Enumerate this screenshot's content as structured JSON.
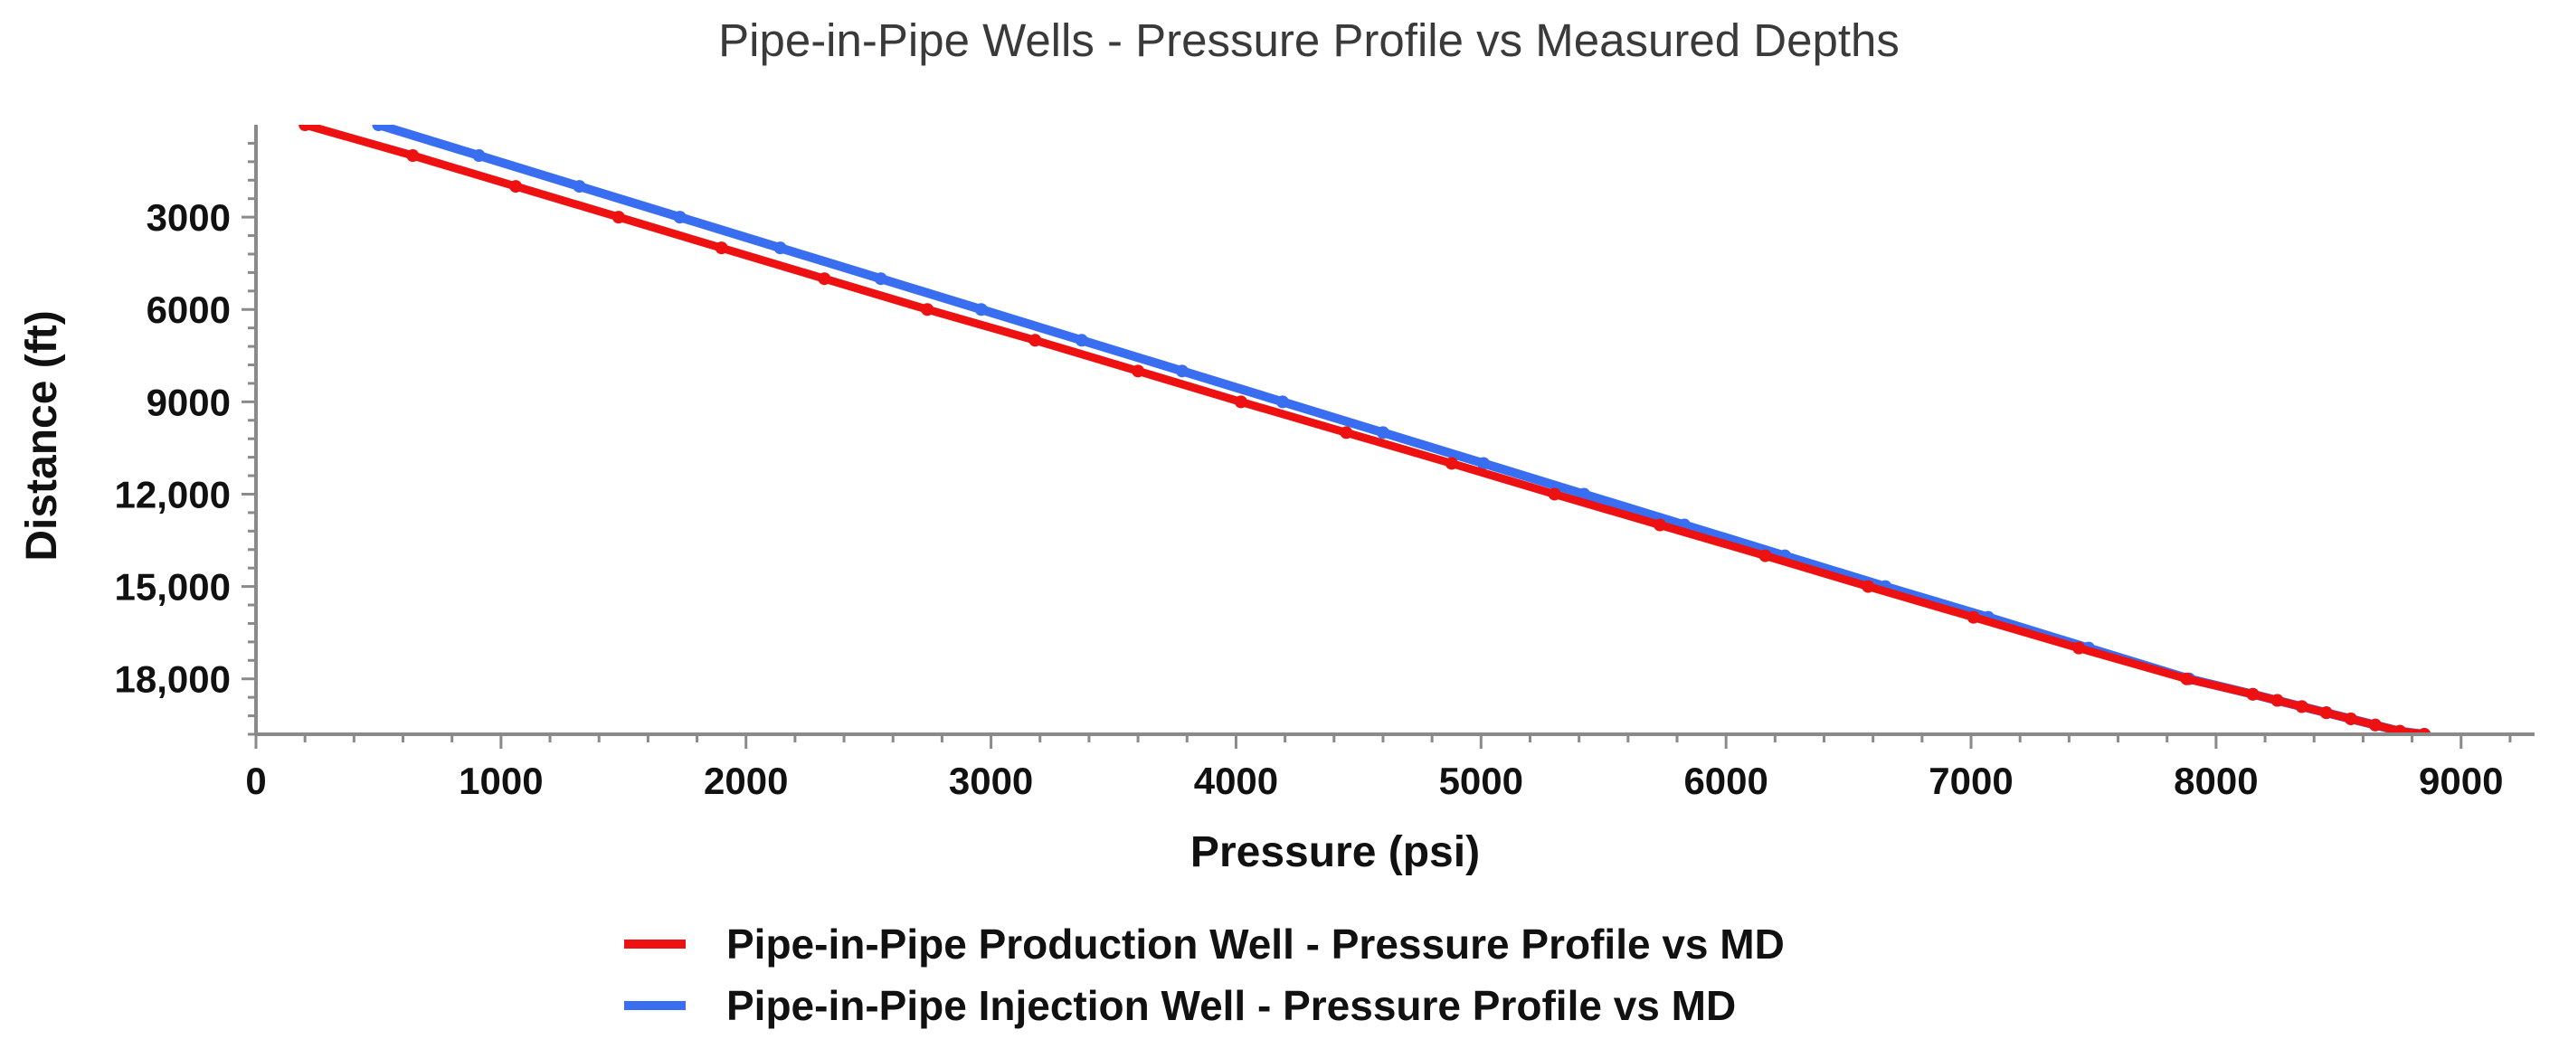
{
  "chart_data": {
    "type": "line",
    "title": "Pipe-in-Pipe Wells - Pressure Profile vs Measured Depths",
    "xlabel": "Pressure (psi)",
    "ylabel": "Distance (ft)",
    "xlim": [
      0,
      9300
    ],
    "ylim": [
      0,
      19800
    ],
    "y_inverted": true,
    "x_ticks": [
      "0",
      "1000",
      "2000",
      "3000",
      "4000",
      "5000",
      "6000",
      "7000",
      "8000",
      "9000"
    ],
    "y_ticks": [
      "3000",
      "6000",
      "9000",
      "12,000",
      "15,000",
      "18,000"
    ],
    "legend_position": "bottom",
    "grid": false,
    "series": [
      {
        "name": "Pipe-in-Pipe Production Well - Pressure Profile vs MD",
        "color": "#ee1111",
        "x": [
          200,
          640,
          1060,
          1480,
          1900,
          2320,
          2740,
          3180,
          3600,
          4020,
          4450,
          4880,
          5300,
          5730,
          6160,
          6580,
          7010,
          7440,
          7880,
          8150,
          8250,
          8350,
          8450,
          8550,
          8650,
          8750,
          8850
        ],
        "y": [
          0,
          1000,
          2000,
          3000,
          4000,
          5000,
          6000,
          7000,
          8000,
          9000,
          10000,
          11000,
          12000,
          13000,
          14000,
          15000,
          16000,
          17000,
          18000,
          18500,
          18700,
          18900,
          19100,
          19300,
          19500,
          19700,
          19800
        ]
      },
      {
        "name": "Pipe-in-Pipe Injection Well - Pressure Profile vs MD",
        "color": "#3a6ef0",
        "x": [
          500,
          910,
          1320,
          1730,
          2140,
          2550,
          2960,
          3370,
          3780,
          4190,
          4600,
          5010,
          5420,
          5830,
          6240,
          6650,
          7070,
          7480,
          7890,
          8150,
          8250,
          8350,
          8450,
          8550,
          8650,
          8750,
          8850
        ],
        "y": [
          0,
          1000,
          2000,
          3000,
          4000,
          5000,
          6000,
          7000,
          8000,
          9000,
          10000,
          11000,
          12000,
          13000,
          14000,
          15000,
          16000,
          17000,
          18000,
          18500,
          18700,
          18900,
          19100,
          19300,
          19500,
          19700,
          19800
        ]
      }
    ]
  }
}
